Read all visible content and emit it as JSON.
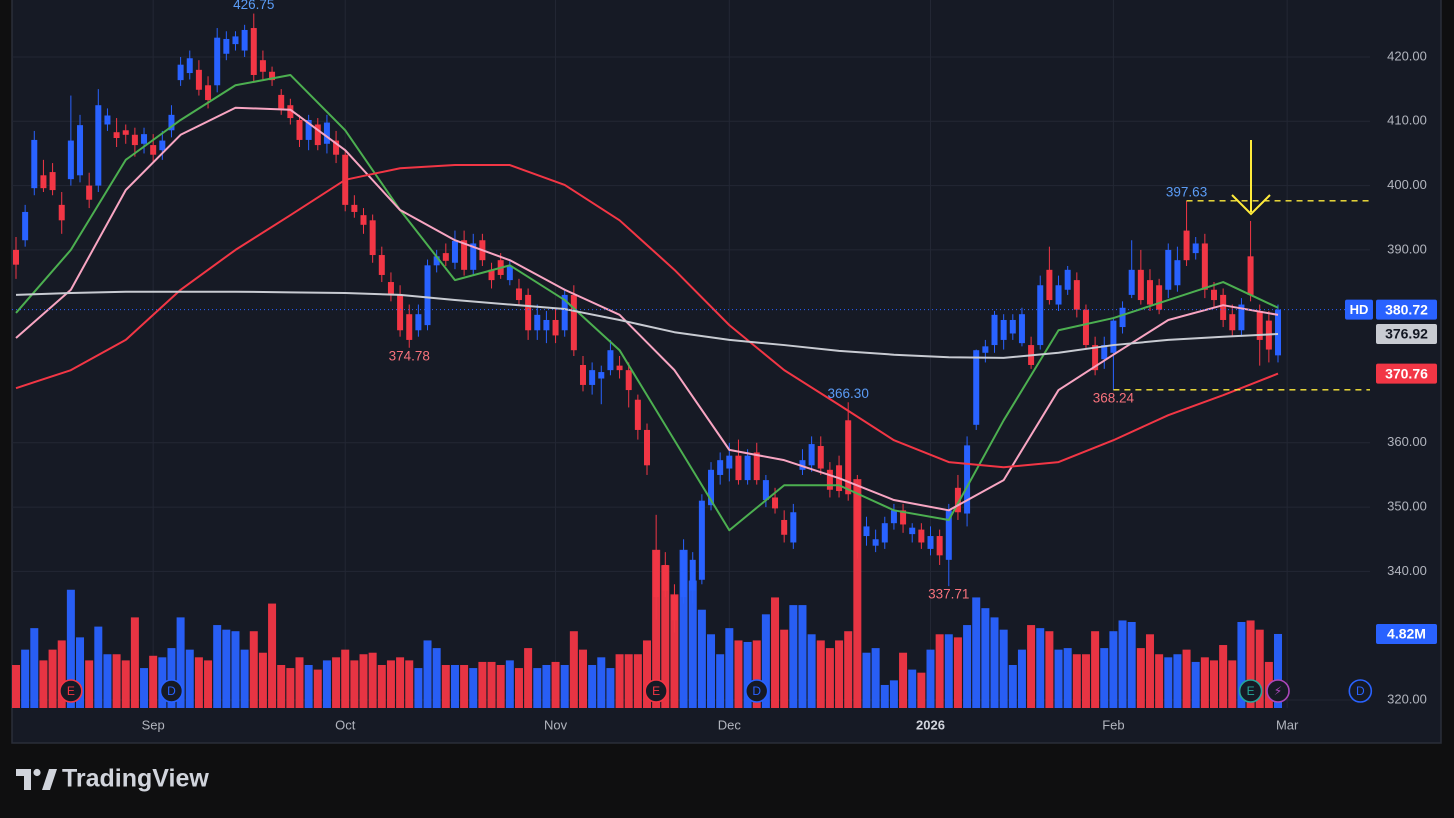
{
  "chart_data": {
    "type": "candlestick",
    "categories": [
      null,
      null,
      null,
      null,
      null,
      null,
      null,
      null,
      null,
      null,
      null,
      null,
      null,
      null,
      null,
      "Sep",
      null,
      null,
      null,
      null,
      null,
      null,
      null,
      null,
      null,
      null,
      null,
      null,
      null,
      null,
      null,
      null,
      null,
      null,
      null,
      null,
      "Oct",
      null,
      null,
      null,
      null,
      null,
      null,
      null,
      null,
      null,
      null,
      null,
      null,
      null,
      null,
      null,
      null,
      null,
      null,
      null,
      null,
      null,
      null,
      "Nov",
      null,
      null,
      null,
      null,
      null,
      null,
      null,
      null,
      null,
      null,
      null,
      null,
      null,
      null,
      null,
      null,
      null,
      null,
      "Dec",
      null,
      null,
      null,
      null,
      null,
      null,
      null,
      null,
      null,
      null,
      null,
      null,
      null,
      null,
      null,
      null,
      null,
      null,
      null,
      null,
      null,
      "2026",
      null,
      null,
      null,
      null,
      null,
      null,
      null,
      null,
      null,
      null,
      null,
      null,
      null,
      null,
      null,
      null,
      null,
      null,
      null,
      "Feb",
      null,
      null,
      null,
      null,
      null,
      null,
      null,
      null,
      null,
      null,
      null,
      null,
      null,
      null,
      null,
      null,
      null,
      null,
      "Mar"
    ],
    "open": [
      390.0,
      391.5,
      399.6,
      401.6,
      402.1,
      397.0,
      401.0,
      401.6,
      400.0,
      400.0,
      409.5,
      408.3,
      408.6,
      407.9,
      406.5,
      406.3,
      405.5,
      408.6,
      416.4,
      417.5,
      418.0,
      415.6,
      415.6,
      420.5,
      422.0,
      421.0,
      424.5,
      419.5,
      417.7,
      414.1,
      412.5,
      410.2,
      407.1,
      409.5,
      406.5,
      407.0,
      404.8,
      397.0,
      395.4,
      394.6,
      389.2,
      385.0,
      383.0,
      380.0,
      377.5,
      378.3,
      387.6,
      389.5,
      388.0,
      391.5,
      386.9,
      391.5,
      386.9,
      388.4,
      385.3,
      384.0,
      383.0,
      377.5,
      377.5,
      379.1,
      377.5,
      383.0,
      372.1,
      369.0,
      370.0,
      371.3,
      372.0,
      371.3,
      366.7,
      362.0,
      343.3,
      341.0,
      336.3,
      336.0,
      337.0,
      338.7,
      350.3,
      355.0,
      356.0,
      358.0,
      354.2,
      358.5,
      351.1,
      351.5,
      348.0,
      344.5,
      355.8,
      356.5,
      359.5,
      355.8,
      356.5,
      363.5,
      353.4,
      345.5,
      344.0,
      344.5,
      347.5,
      349.5,
      345.8,
      346.5,
      343.5,
      345.5,
      341.8,
      353.0,
      349.0,
      362.8,
      374.0,
      375.2,
      376.0,
      377.0,
      375.5,
      375.2,
      375.2,
      386.9,
      381.5,
      383.8,
      385.3,
      380.7,
      375.2,
      373.0,
      374.0,
      378.0,
      383.0,
      386.9,
      385.3,
      384.5,
      383.8,
      384.5,
      393.0,
      389.5,
      391.0,
      383.8,
      383.0,
      380.0,
      377.5,
      389.0,
      380.5,
      379.0,
      373.6,
      null
    ],
    "high": [
      392.0,
      397.0,
      408.5,
      404.0,
      403.5,
      399.0,
      414.0,
      411.0,
      402.0,
      415.0,
      412.0,
      410.5,
      409.5,
      409.0,
      409.0,
      408.0,
      408.5,
      412.5,
      420.0,
      421.0,
      419.5,
      417.0,
      424.5,
      424.0,
      424.0,
      425.0,
      426.75,
      421.0,
      418.5,
      415.0,
      413.5,
      411.0,
      411.0,
      410.5,
      411.0,
      408.5,
      405.5,
      398.5,
      396.5,
      395.5,
      390.5,
      386.5,
      384.5,
      381.5,
      381.5,
      388.5,
      390.0,
      391.0,
      393.0,
      393.0,
      392.5,
      392.5,
      388.0,
      389.5,
      388.5,
      385.5,
      384.0,
      381.5,
      380.5,
      381.0,
      384.0,
      384.5,
      373.5,
      372.5,
      372.0,
      376.0,
      373.5,
      372.5,
      367.5,
      363.0,
      348.8,
      343.0,
      338.0,
      345.0,
      343.0,
      352.0,
      357.0,
      358.5,
      360.0,
      360.5,
      359.0,
      360.0,
      355.0,
      353.0,
      349.5,
      350.5,
      359.0,
      361.0,
      361.0,
      357.0,
      358.0,
      366.3,
      355.0,
      348.5,
      346.5,
      348.5,
      350.5,
      350.5,
      347.5,
      347.5,
      347.0,
      346.5,
      350.5,
      355.0,
      361.0,
      374.5,
      376.0,
      380.5,
      380.0,
      380.0,
      381.0,
      376.5,
      386.0,
      390.5,
      386.0,
      387.5,
      386.5,
      381.5,
      376.5,
      376.5,
      379.5,
      382.0,
      391.5,
      390.0,
      387.0,
      385.5,
      391.0,
      390.5,
      397.63,
      392.0,
      392.5,
      385.0,
      384.0,
      381.5,
      382.5,
      394.5,
      381.5,
      380.5,
      381.5,
      null
    ],
    "low": [
      385.5,
      390.5,
      398.5,
      399.0,
      398.5,
      392.5,
      400.0,
      400.5,
      396.5,
      399.0,
      408.5,
      406.0,
      406.5,
      404.5,
      405.0,
      403.5,
      404.0,
      407.5,
      415.5,
      416.5,
      414.0,
      412.0,
      414.5,
      419.5,
      421.0,
      420.0,
      416.0,
      416.5,
      415.5,
      411.0,
      409.5,
      406.0,
      405.5,
      405.5,
      405.0,
      403.5,
      396.0,
      395.0,
      392.5,
      388.0,
      385.0,
      382.0,
      376.5,
      374.78,
      376.5,
      377.5,
      386.5,
      387.5,
      387.0,
      386.0,
      386.0,
      387.5,
      384.0,
      385.5,
      384.5,
      381.5,
      376.0,
      376.0,
      375.5,
      375.5,
      376.5,
      373.5,
      368.0,
      367.5,
      366.0,
      370.5,
      370.0,
      365.5,
      360.5,
      355.0,
      332.5,
      336.0,
      330.5,
      335.0,
      335.0,
      338.0,
      349.5,
      353.5,
      354.0,
      353.5,
      353.5,
      353.5,
      350.0,
      349.0,
      344.5,
      343.5,
      355.0,
      355.5,
      355.0,
      351.5,
      351.5,
      351.0,
      342.0,
      344.0,
      343.0,
      343.5,
      346.5,
      346.0,
      344.5,
      343.5,
      342.5,
      341.0,
      337.71,
      348.0,
      347.0,
      362.0,
      372.5,
      374.0,
      374.5,
      376.0,
      375.0,
      371.5,
      374.5,
      381.5,
      380.5,
      383.0,
      379.5,
      374.5,
      370.5,
      371.5,
      368.24,
      377.0,
      382.5,
      381.5,
      380.5,
      380.0,
      382.5,
      383.5,
      387.5,
      388.5,
      382.5,
      381.0,
      378.0,
      376.5,
      376.5,
      382.0,
      372.0,
      372.5,
      372.5,
      null
    ],
    "close": [
      387.7,
      395.9,
      407.1,
      399.6,
      399.3,
      394.6,
      407.0,
      409.4,
      397.8,
      412.5,
      410.9,
      407.4,
      407.9,
      406.3,
      408.0,
      404.8,
      407.0,
      411.0,
      418.8,
      419.8,
      414.9,
      413.3,
      423.0,
      422.8,
      423.2,
      424.2,
      417.2,
      417.7,
      416.4,
      412.0,
      410.5,
      407.1,
      410.2,
      406.3,
      409.8,
      404.8,
      397.0,
      395.9,
      393.9,
      389.2,
      386.1,
      383.0,
      377.5,
      376.0,
      380.0,
      387.6,
      389.0,
      388.3,
      391.4,
      386.9,
      391.0,
      388.4,
      385.3,
      386.1,
      387.5,
      382.2,
      377.5,
      379.9,
      379.1,
      376.7,
      383.0,
      374.4,
      369.0,
      371.3,
      371.0,
      374.4,
      371.3,
      368.2,
      362.0,
      356.5,
      336.0,
      337.0,
      332.4,
      343.3,
      341.8,
      351.0,
      355.8,
      357.3,
      358.0,
      354.2,
      358.0,
      354.2,
      354.2,
      349.8,
      345.7,
      349.2,
      357.3,
      359.8,
      356.0,
      352.7,
      352.5,
      352.0,
      343.3,
      347.0,
      345.0,
      347.5,
      349.5,
      347.3,
      346.8,
      344.5,
      345.5,
      342.5,
      349.5,
      349.2,
      359.6,
      374.4,
      375.0,
      379.9,
      379.1,
      379.1,
      380.0,
      372.1,
      384.5,
      382.2,
      384.5,
      386.9,
      380.7,
      375.2,
      371.3,
      375.2,
      379.0,
      381.0,
      386.9,
      382.2,
      381.5,
      380.7,
      390.0,
      388.4,
      388.4,
      391.0,
      383.8,
      382.2,
      379.1,
      377.5,
      381.5,
      383.0,
      376.0,
      374.5,
      380.72,
      null
    ],
    "volume": [
      2.8,
      3.8,
      5.2,
      3.1,
      3.8,
      4.4,
      7.7,
      4.6,
      3.1,
      5.3,
      3.5,
      3.5,
      3.1,
      5.9,
      2.6,
      3.4,
      3.3,
      3.9,
      5.9,
      3.8,
      3.3,
      3.1,
      5.4,
      5.1,
      5.0,
      3.8,
      5.0,
      3.6,
      6.8,
      2.8,
      2.6,
      3.3,
      2.8,
      2.5,
      3.1,
      3.3,
      3.8,
      3.1,
      3.5,
      3.6,
      2.8,
      3.1,
      3.3,
      3.1,
      2.6,
      4.4,
      3.9,
      2.8,
      2.8,
      2.8,
      2.6,
      3.0,
      3.0,
      2.8,
      3.1,
      2.6,
      3.9,
      2.6,
      2.8,
      3.0,
      2.8,
      5.0,
      3.8,
      2.8,
      3.3,
      2.6,
      3.5,
      3.5,
      3.5,
      4.4,
      10.3,
      9.3,
      7.4,
      10.3,
      8.3,
      6.4,
      4.8,
      3.5,
      5.2,
      4.4,
      4.3,
      4.4,
      6.1,
      7.2,
      5.1,
      6.7,
      6.7,
      4.8,
      4.4,
      3.9,
      4.4,
      5.0,
      14.9,
      3.6,
      3.9,
      1.5,
      1.8,
      3.6,
      2.5,
      2.3,
      3.8,
      4.8,
      4.8,
      4.6,
      5.4,
      7.2,
      6.5,
      5.9,
      5.1,
      2.8,
      3.8,
      5.4,
      5.2,
      5.0,
      3.8,
      3.9,
      3.5,
      3.5,
      5.0,
      3.9,
      5.0,
      5.7,
      5.6,
      3.9,
      4.8,
      3.5,
      3.3,
      3.5,
      3.8,
      3.0,
      3.3,
      3.1,
      4.1,
      3.1,
      5.6,
      5.7,
      5.1,
      3.0,
      4.82,
      null
    ],
    "up_color": "#2962ff",
    "down_color": "#f23645",
    "ylim": [
      318.76,
      428.86
    ],
    "yticks": [
      {
        "value": 320,
        "label": "320.00"
      },
      {
        "value": 340,
        "label": "340.00"
      },
      {
        "value": 350,
        "label": "350.00"
      },
      {
        "value": 360,
        "label": "360.00"
      },
      {
        "value": 390,
        "label": "390.00"
      },
      {
        "value": 400,
        "label": "400.00"
      },
      {
        "value": 410,
        "label": "410.00"
      },
      {
        "value": 420,
        "label": "420.00"
      }
    ],
    "volume_lim": [
      0,
      46.1
    ],
    "grid": true,
    "lines": [
      {
        "color": "#4caf50",
        "x": [
          0,
          6,
          12,
          18,
          24,
          30,
          36,
          42,
          48,
          54,
          60,
          66,
          72,
          78,
          84,
          90,
          96,
          102,
          108,
          114,
          120,
          126,
          132,
          138
        ],
        "values": [
          380.2,
          390,
          404,
          410.2,
          415.6,
          417.2,
          408.6,
          396.2,
          385.3,
          387.6,
          382.2,
          374.4,
          360.4,
          346.4,
          353.4,
          353.4,
          349.5,
          348,
          363.5,
          377.5,
          379.4,
          382.2,
          385,
          381
        ]
      },
      {
        "color": "#f8a5c2",
        "x": [
          0,
          6,
          12,
          18,
          24,
          30,
          36,
          42,
          48,
          54,
          60,
          66,
          72,
          78,
          84,
          90,
          96,
          102,
          108,
          114,
          120,
          126,
          132,
          138
        ],
        "values": [
          376.3,
          383.8,
          399.3,
          407.9,
          412.1,
          411.8,
          405.5,
          396.2,
          391.5,
          388.4,
          383.8,
          379.9,
          371.3,
          358.9,
          357.3,
          354.5,
          351.1,
          349.5,
          354.2,
          368.2,
          373.7,
          379.1,
          381.4,
          379.9
        ]
      },
      {
        "color": "#f23645",
        "x": [
          0,
          6,
          12,
          18,
          24,
          30,
          36,
          42,
          48,
          54,
          60,
          66,
          72,
          78,
          84,
          90,
          96,
          102,
          108,
          114,
          120,
          126,
          132,
          138
        ],
        "values": [
          368.5,
          371.3,
          376,
          383.8,
          390,
          395.4,
          400.9,
          402.7,
          403.2,
          403.2,
          400.1,
          394.6,
          386.9,
          378.3,
          371.3,
          365.9,
          360.4,
          357,
          356.2,
          357,
          360.4,
          364.3,
          367.4,
          370.76
        ]
      },
      {
        "color": "#c8cbd2",
        "x": [
          0,
          6,
          12,
          18,
          24,
          30,
          36,
          42,
          48,
          54,
          60,
          66,
          72,
          78,
          84,
          90,
          96,
          102,
          108,
          114,
          120,
          126,
          132,
          138
        ],
        "values": [
          383,
          383.3,
          383.5,
          383.5,
          383.5,
          383.4,
          383.3,
          383,
          382.2,
          381.5,
          380.8,
          379.1,
          377.2,
          376,
          375.2,
          374.3,
          373.7,
          373.3,
          373.2,
          374,
          375.2,
          376,
          376.5,
          376.92
        ]
      }
    ],
    "annotations": [
      {
        "label": "426.75",
        "value": 426.75,
        "at": 26,
        "side": "above",
        "color": "#5b9cf6"
      },
      {
        "label": "374.78",
        "value": 374.78,
        "at": 43,
        "side": "below",
        "color": "#f7727c"
      },
      {
        "label": "366.30",
        "value": 366.3,
        "at": 91,
        "side": "above",
        "color": "#5b9cf6"
      },
      {
        "label": "337.71",
        "value": 337.71,
        "at": 102,
        "side": "below",
        "color": "#f7727c"
      },
      {
        "label": "397.63",
        "value": 397.63,
        "at": 128,
        "side": "above",
        "color": "#5b9cf6"
      },
      {
        "label": "368.24",
        "value": 368.24,
        "at": 120,
        "side": "below",
        "color": "#f7727c"
      }
    ],
    "levels": [
      {
        "value": 397.63,
        "from": 128,
        "color": "#ffeb3b"
      },
      {
        "value": 368.24,
        "from": 120,
        "color": "#ffeb3b"
      }
    ],
    "price_labels": [
      {
        "value": 380.72,
        "label": "380.72",
        "symbol": "HD",
        "color": "#2962ff",
        "text_color": "#ffffff"
      },
      {
        "value": 376.92,
        "label": "376.92",
        "color": "#c8cbd2",
        "text_color": "#131722"
      },
      {
        "value": 370.76,
        "label": "370.76",
        "color": "#f23645",
        "text_color": "#ffffff"
      }
    ],
    "volume_label": {
      "value": 4.82,
      "label": "4.82M",
      "color": "#2962ff"
    },
    "events": [
      {
        "label": "E",
        "at": 6,
        "color": "#f23645"
      },
      {
        "label": "D",
        "at": 17,
        "color": "#2962ff"
      },
      {
        "label": "E",
        "at": 70,
        "color": "#f23645"
      },
      {
        "label": "D",
        "at": 81,
        "color": "#2962ff"
      },
      {
        "label": "E",
        "at": 135,
        "color": "#26a69a"
      },
      {
        "label": "⚡",
        "at": 138,
        "color": "#ab47bc"
      },
      {
        "label": "D",
        "at": 147,
        "color": "#2962ff"
      }
    ]
  },
  "branding": {
    "name": "TradingView"
  }
}
